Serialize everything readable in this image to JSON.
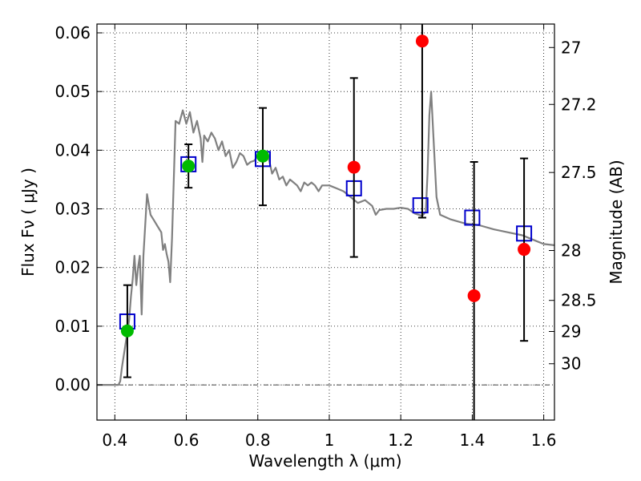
{
  "chart_data": {
    "type": "scatter",
    "xlabel": "Wavelength  λ (μm)",
    "ylabel": "Flux  Fν  ( μJy )",
    "y2label": "Magnitude (AB)",
    "xlim": [
      0.35,
      1.63
    ],
    "ylim": [
      -0.006,
      0.0615
    ],
    "x_ticks": [
      0.4,
      0.6,
      0.8,
      1.0,
      1.2,
      1.4,
      1.6
    ],
    "x_tick_labels": [
      "0.4",
      "0.6",
      "0.8",
      "1",
      "1.2",
      "1.4",
      "1.6"
    ],
    "y_ticks": [
      0.0,
      0.01,
      0.02,
      0.03,
      0.04,
      0.05,
      0.06
    ],
    "y_tick_labels": [
      "0.00",
      "0.01",
      "0.02",
      "0.03",
      "0.04",
      "0.05",
      "0.06"
    ],
    "magnitude_ticks": [
      {
        "label": "27",
        "flux": 0.0575
      },
      {
        "label": "27.2",
        "flux": 0.0478
      },
      {
        "label": "27.5",
        "flux": 0.0362
      },
      {
        "label": "28",
        "flux": 0.0229
      },
      {
        "label": "28.5",
        "flux": 0.0144
      },
      {
        "label": "29",
        "flux": 0.0091
      },
      {
        "label": "30",
        "flux": 0.0036
      }
    ],
    "grid": true,
    "colors": {
      "model": "#808080",
      "model_photometry": "#0000cc",
      "detections": "#00bb00",
      "non_detections": "#ff0000",
      "error_bars": "#000000"
    },
    "model_spectrum": [
      [
        0.35,
        0.0
      ],
      [
        0.4,
        0.0
      ],
      [
        0.41,
        0.0
      ],
      [
        0.415,
        0.0006
      ],
      [
        0.42,
        0.003
      ],
      [
        0.43,
        0.007
      ],
      [
        0.44,
        0.011
      ],
      [
        0.445,
        0.015
      ],
      [
        0.45,
        0.018
      ],
      [
        0.455,
        0.022
      ],
      [
        0.46,
        0.017
      ],
      [
        0.465,
        0.02
      ],
      [
        0.47,
        0.022
      ],
      [
        0.475,
        0.012
      ],
      [
        0.48,
        0.022
      ],
      [
        0.49,
        0.0325
      ],
      [
        0.5,
        0.029
      ],
      [
        0.51,
        0.028
      ],
      [
        0.52,
        0.027
      ],
      [
        0.53,
        0.026
      ],
      [
        0.535,
        0.023
      ],
      [
        0.54,
        0.024
      ],
      [
        0.545,
        0.0223
      ],
      [
        0.55,
        0.021
      ],
      [
        0.555,
        0.0175
      ],
      [
        0.56,
        0.025
      ],
      [
        0.57,
        0.045
      ],
      [
        0.58,
        0.0445
      ],
      [
        0.59,
        0.0468
      ],
      [
        0.6,
        0.0445
      ],
      [
        0.61,
        0.0465
      ],
      [
        0.62,
        0.043
      ],
      [
        0.63,
        0.045
      ],
      [
        0.64,
        0.042
      ],
      [
        0.645,
        0.038
      ],
      [
        0.65,
        0.0425
      ],
      [
        0.66,
        0.0415
      ],
      [
        0.67,
        0.043
      ],
      [
        0.68,
        0.042
      ],
      [
        0.69,
        0.04
      ],
      [
        0.7,
        0.0415
      ],
      [
        0.71,
        0.039
      ],
      [
        0.72,
        0.04
      ],
      [
        0.73,
        0.037
      ],
      [
        0.74,
        0.038
      ],
      [
        0.75,
        0.0395
      ],
      [
        0.76,
        0.039
      ],
      [
        0.77,
        0.0375
      ],
      [
        0.78,
        0.038
      ],
      [
        0.79,
        0.0382
      ],
      [
        0.8,
        0.039
      ],
      [
        0.81,
        0.0385
      ],
      [
        0.82,
        0.0392
      ],
      [
        0.83,
        0.0388
      ],
      [
        0.84,
        0.036
      ],
      [
        0.85,
        0.037
      ],
      [
        0.86,
        0.035
      ],
      [
        0.87,
        0.0355
      ],
      [
        0.88,
        0.034
      ],
      [
        0.89,
        0.035
      ],
      [
        0.9,
        0.0345
      ],
      [
        0.91,
        0.034
      ],
      [
        0.92,
        0.033
      ],
      [
        0.93,
        0.0345
      ],
      [
        0.94,
        0.034
      ],
      [
        0.95,
        0.0345
      ],
      [
        0.96,
        0.034
      ],
      [
        0.97,
        0.033
      ],
      [
        0.98,
        0.034
      ],
      [
        1.0,
        0.034
      ],
      [
        1.02,
        0.0335
      ],
      [
        1.04,
        0.033
      ],
      [
        1.06,
        0.032
      ],
      [
        1.08,
        0.031
      ],
      [
        1.1,
        0.0315
      ],
      [
        1.12,
        0.0305
      ],
      [
        1.13,
        0.029
      ],
      [
        1.14,
        0.0298
      ],
      [
        1.16,
        0.03
      ],
      [
        1.18,
        0.03
      ],
      [
        1.2,
        0.0302
      ],
      [
        1.22,
        0.03
      ],
      [
        1.24,
        0.0292
      ],
      [
        1.26,
        0.0288
      ],
      [
        1.27,
        0.0295
      ],
      [
        1.275,
        0.036
      ],
      [
        1.28,
        0.046
      ],
      [
        1.285,
        0.05
      ],
      [
        1.29,
        0.044
      ],
      [
        1.3,
        0.032
      ],
      [
        1.31,
        0.029
      ],
      [
        1.34,
        0.0282
      ],
      [
        1.38,
        0.0275
      ],
      [
        1.42,
        0.0272
      ],
      [
        1.46,
        0.0265
      ],
      [
        1.5,
        0.026
      ],
      [
        1.54,
        0.0255
      ],
      [
        1.58,
        0.0245
      ],
      [
        1.6,
        0.024
      ],
      [
        1.63,
        0.0238
      ]
    ],
    "series": [
      {
        "role": "model_photometry",
        "marker": "open-square",
        "points": [
          {
            "x": 0.435,
            "y": 0.0108
          },
          {
            "x": 0.606,
            "y": 0.0376
          },
          {
            "x": 0.814,
            "y": 0.0385
          },
          {
            "x": 1.069,
            "y": 0.0335
          },
          {
            "x": 1.255,
            "y": 0.0306
          },
          {
            "x": 1.4,
            "y": 0.0285
          },
          {
            "x": 1.545,
            "y": 0.0258
          }
        ]
      },
      {
        "role": "detections",
        "marker": "filled-circle",
        "points": [
          {
            "x": 0.435,
            "y": 0.0092,
            "ylo": 0.0013,
            "yhi": 0.017
          },
          {
            "x": 0.606,
            "y": 0.0373,
            "ylo": 0.0336,
            "yhi": 0.041
          },
          {
            "x": 0.814,
            "y": 0.039,
            "ylo": 0.0306,
            "yhi": 0.0472
          }
        ]
      },
      {
        "role": "non_detections",
        "marker": "filled-circle",
        "points": [
          {
            "x": 1.069,
            "y": 0.0371,
            "ylo": 0.0218,
            "yhi": 0.0523
          },
          {
            "x": 1.26,
            "y": 0.0586,
            "ylo": 0.0285,
            "yhi": 0.065
          },
          {
            "x": 1.405,
            "y": 0.0152,
            "ylo": -0.008,
            "yhi": 0.038
          },
          {
            "x": 1.545,
            "y": 0.0231,
            "ylo": 0.0075,
            "yhi": 0.0386
          }
        ]
      }
    ]
  }
}
